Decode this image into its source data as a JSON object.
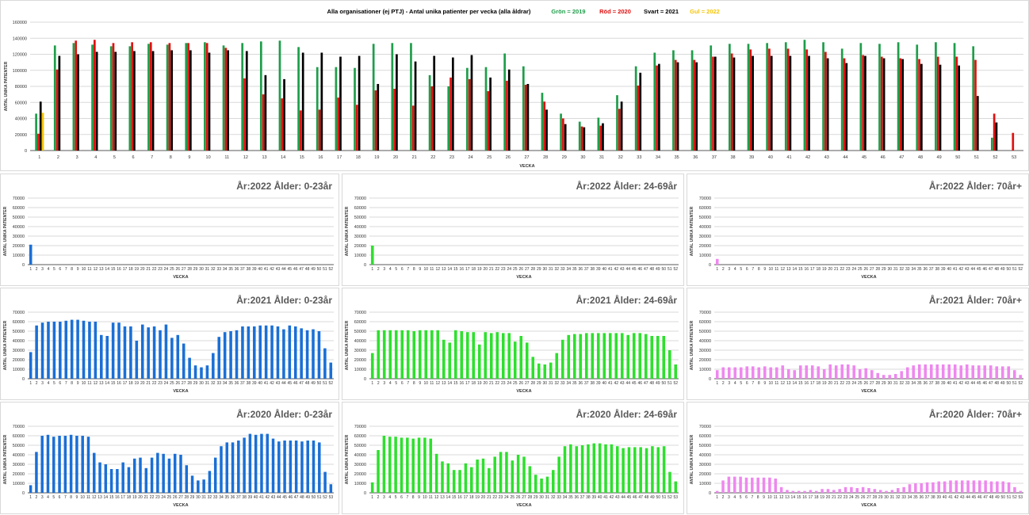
{
  "colors": {
    "green": "#1e9e4a",
    "red": "#e01010",
    "black": "#000000",
    "yellow": "#f5c400",
    "blue": "#1a6fd6",
    "lime": "#2ee02e",
    "pink": "#ee88ee",
    "grid": "#d9d9d9",
    "axis": "#595959"
  },
  "chart_data": [
    {
      "type": "bar",
      "title": "Alla organisationer (ej PTJ)   -   Antal unika patienter per vecka (alla åldrar)",
      "legend": [
        {
          "label": "Grön = 2019",
          "color": "#1e9e4a"
        },
        {
          "label": "Röd = 2020",
          "color": "#e01010"
        },
        {
          "label": "Svart = 2021",
          "color": "#000000"
        },
        {
          "label": "Gul = 2022",
          "color": "#f5c400"
        }
      ],
      "xlabel": "VECKA",
      "ylabel": "ANTAL UNIKA PATIENTER",
      "ylim": [
        0,
        160000
      ],
      "yticks": [
        0,
        20000,
        40000,
        60000,
        80000,
        100000,
        120000,
        140000,
        160000
      ],
      "grid": true,
      "categories": [
        "1",
        "2",
        "3",
        "4",
        "5",
        "6",
        "7",
        "8",
        "9",
        "10",
        "11",
        "12",
        "13",
        "14",
        "15",
        "16",
        "17",
        "18",
        "19",
        "20",
        "21",
        "22",
        "23",
        "24",
        "25",
        "26",
        "27",
        "28",
        "29",
        "30",
        "31",
        "32",
        "33",
        "34",
        "35",
        "36",
        "37",
        "38",
        "39",
        "40",
        "41",
        "42",
        "43",
        "44",
        "45",
        "46",
        "47",
        "48",
        "49",
        "50",
        "51",
        "52",
        "53"
      ],
      "series": [
        {
          "name": "2019",
          "color": "#1e9e4a",
          "values": [
            46000,
            131000,
            134000,
            132000,
            130000,
            130000,
            133000,
            132000,
            134000,
            135000,
            131000,
            134000,
            136000,
            137000,
            129000,
            104000,
            104000,
            103000,
            133000,
            134000,
            134000,
            94000,
            80000,
            103000,
            104000,
            121000,
            105000,
            72000,
            46000,
            36000,
            41000,
            69000,
            105000,
            122000,
            125000,
            125000,
            131000,
            133000,
            133000,
            134000,
            135000,
            138000,
            135000,
            127000,
            134000,
            133000,
            135000,
            132000,
            135000,
            134000,
            130000,
            16000,
            0
          ]
        },
        {
          "name": "2020",
          "color": "#e01010",
          "values": [
            21000,
            101000,
            137000,
            138000,
            134000,
            135000,
            135000,
            134000,
            134000,
            134000,
            128000,
            90000,
            70000,
            65000,
            50000,
            51000,
            66000,
            57000,
            75000,
            77000,
            56000,
            80000,
            91000,
            89000,
            74000,
            87000,
            82000,
            61000,
            40000,
            30000,
            31000,
            52000,
            81000,
            106000,
            113000,
            113000,
            117000,
            121000,
            126000,
            127000,
            127000,
            126000,
            123000,
            115000,
            119000,
            117000,
            115000,
            114000,
            117000,
            117000,
            113000,
            46000,
            22000
          ]
        },
        {
          "name": "2021",
          "color": "#000000",
          "values": [
            61000,
            118000,
            120000,
            123000,
            123000,
            124000,
            124000,
            125000,
            125000,
            122000,
            125000,
            124000,
            94000,
            89000,
            122000,
            122000,
            117000,
            118000,
            83000,
            120000,
            111000,
            118000,
            116000,
            119000,
            91000,
            101000,
            83000,
            51000,
            33000,
            29000,
            34000,
            61000,
            97000,
            108000,
            110000,
            110000,
            117000,
            116000,
            118000,
            118000,
            118000,
            118000,
            115000,
            109000,
            118000,
            115000,
            114000,
            108000,
            107000,
            106000,
            68000,
            35000,
            0
          ]
        },
        {
          "name": "2022",
          "color": "#f5c400",
          "values": [
            47000,
            0,
            0,
            0,
            0,
            0,
            0,
            0,
            0,
            0,
            0,
            0,
            0,
            0,
            0,
            0,
            0,
            0,
            0,
            0,
            0,
            0,
            0,
            0,
            0,
            0,
            0,
            0,
            0,
            0,
            0,
            0,
            0,
            0,
            0,
            0,
            0,
            0,
            0,
            0,
            0,
            0,
            0,
            0,
            0,
            0,
            0,
            0,
            0,
            0,
            0,
            0,
            0
          ]
        }
      ]
    },
    {
      "type": "bar",
      "title": "År:2022   Ålder: 0-23år",
      "color": "#1a6fd6",
      "xlabel": "VECKA",
      "ylabel": "ANTAL UNIKA PATIENTER",
      "ylim": [
        0,
        70000
      ],
      "yticks": [
        0,
        10000,
        20000,
        30000,
        40000,
        50000,
        60000,
        70000
      ],
      "weeks": 52,
      "values": [
        21000
      ]
    },
    {
      "type": "bar",
      "title": "År:2022   Ålder: 24-69år",
      "color": "#2ee02e",
      "xlabel": "VECKA",
      "ylabel": "ANTAL UNIKA PATIENTER",
      "ylim": [
        0,
        70000
      ],
      "yticks": [
        0,
        10000,
        20000,
        30000,
        40000,
        50000,
        60000,
        70000
      ],
      "weeks": 52,
      "values": [
        20000
      ]
    },
    {
      "type": "bar",
      "title": "År:2022   Ålder: 70år+",
      "color": "#ee88ee",
      "xlabel": "VECKA",
      "ylabel": "ANTAL UNIKA PATIENTER",
      "ylim": [
        0,
        70000
      ],
      "yticks": [
        0,
        10000,
        20000,
        30000,
        40000,
        50000,
        60000,
        70000
      ],
      "weeks": 52,
      "values": [
        6000
      ]
    },
    {
      "type": "bar",
      "title": "År:2021   Ålder: 0-23år",
      "color": "#1a6fd6",
      "xlabel": "VECKA",
      "ylabel": "ANTAL UNIKA PATIENTER",
      "ylim": [
        0,
        70000
      ],
      "yticks": [
        0,
        10000,
        20000,
        30000,
        40000,
        50000,
        60000,
        70000
      ],
      "weeks": 52,
      "values": [
        28000,
        56000,
        59000,
        60000,
        60000,
        60000,
        61000,
        62000,
        62000,
        61000,
        60000,
        60000,
        46000,
        45000,
        59000,
        59000,
        55000,
        55000,
        40000,
        57000,
        54000,
        55000,
        51000,
        57000,
        43000,
        46000,
        37000,
        22000,
        14000,
        12000,
        14000,
        27000,
        44000,
        49000,
        50000,
        51000,
        55000,
        55000,
        55000,
        56000,
        56000,
        56000,
        55000,
        52000,
        56000,
        55000,
        53000,
        51000,
        52000,
        50000,
        32000,
        17000
      ]
    },
    {
      "type": "bar",
      "title": "År:2021   Ålder: 24-69år",
      "color": "#2ee02e",
      "xlabel": "VECKA",
      "ylabel": "ANTAL UNIKA PATIENTER",
      "ylim": [
        0,
        70000
      ],
      "yticks": [
        0,
        10000,
        20000,
        30000,
        40000,
        50000,
        60000,
        70000
      ],
      "weeks": 52,
      "values": [
        27000,
        51000,
        51000,
        51000,
        51000,
        51000,
        51000,
        50000,
        51000,
        51000,
        51000,
        51000,
        41000,
        38000,
        51000,
        50000,
        49000,
        49000,
        36000,
        49000,
        48000,
        49000,
        48000,
        48000,
        39000,
        45000,
        38000,
        23000,
        16000,
        15000,
        17000,
        27000,
        41000,
        46000,
        47000,
        47000,
        48000,
        48000,
        48000,
        48000,
        48000,
        48000,
        48000,
        46000,
        48000,
        48000,
        47000,
        45000,
        45000,
        45000,
        30000,
        15000
      ]
    },
    {
      "type": "bar",
      "title": "År:2021   Ålder: 70år+",
      "color": "#ee88ee",
      "xlabel": "VECKA",
      "ylabel": "ANTAL UNIKA PATIENTER",
      "ylim": [
        0,
        70000
      ],
      "yticks": [
        0,
        10000,
        20000,
        30000,
        40000,
        50000,
        60000,
        70000
      ],
      "weeks": 52,
      "values": [
        9000,
        12000,
        12000,
        12000,
        12000,
        13000,
        13000,
        12000,
        13000,
        12000,
        12000,
        14000,
        10000,
        9000,
        14000,
        14000,
        14000,
        13000,
        10000,
        15000,
        14000,
        15000,
        15000,
        14000,
        10000,
        11000,
        9000,
        6000,
        4000,
        4000,
        5000,
        8000,
        12000,
        14000,
        15000,
        15000,
        15000,
        15000,
        15000,
        15000,
        15000,
        14000,
        15000,
        14000,
        14000,
        14000,
        14000,
        13000,
        13000,
        13000,
        9000,
        4000
      ]
    },
    {
      "type": "bar",
      "title": "År:2020   Ålder: 0-23år",
      "color": "#1a6fd6",
      "xlabel": "VECKA",
      "ylabel": "ANTAL UNIKA PATIENTER",
      "ylim": [
        0,
        70000
      ],
      "yticks": [
        0,
        10000,
        20000,
        30000,
        40000,
        50000,
        60000,
        70000
      ],
      "weeks": 53,
      "values": [
        8000,
        43000,
        60000,
        61000,
        59000,
        60000,
        60000,
        61000,
        60000,
        60000,
        59000,
        42000,
        32000,
        30000,
        25000,
        25000,
        32000,
        27000,
        36000,
        37000,
        26000,
        37000,
        42000,
        41000,
        36000,
        41000,
        40000,
        29000,
        18000,
        13000,
        14000,
        23000,
        37000,
        49000,
        53000,
        53000,
        55000,
        58000,
        62000,
        61000,
        62000,
        62000,
        57000,
        54000,
        55000,
        55000,
        55000,
        54000,
        55000,
        55000,
        53000,
        22000,
        9000
      ]
    },
    {
      "type": "bar",
      "title": "År:2020   Ålder: 24-69år",
      "color": "#2ee02e",
      "xlabel": "VECKA",
      "ylabel": "ANTAL UNIKA PATIENTER",
      "ylim": [
        0,
        70000
      ],
      "yticks": [
        0,
        10000,
        20000,
        30000,
        40000,
        50000,
        60000,
        70000
      ],
      "weeks": 53,
      "values": [
        11000,
        45000,
        60000,
        59000,
        59000,
        58000,
        58000,
        57000,
        58000,
        58000,
        57000,
        41000,
        33000,
        31000,
        24000,
        24000,
        31000,
        27000,
        35000,
        36000,
        26000,
        38000,
        43000,
        43000,
        34000,
        40000,
        38000,
        28000,
        19000,
        15000,
        17000,
        24000,
        38000,
        49000,
        51000,
        49000,
        50000,
        51000,
        52000,
        52000,
        51000,
        51000,
        49000,
        47000,
        48000,
        48000,
        48000,
        47000,
        49000,
        48000,
        49000,
        22000,
        12000
      ]
    },
    {
      "type": "bar",
      "title": "År:2020   Ålder: 70år+",
      "color": "#ee88ee",
      "xlabel": "VECKA",
      "ylabel": "ANTAL UNIKA PATIENTER",
      "ylim": [
        0,
        70000
      ],
      "yticks": [
        0,
        10000,
        20000,
        30000,
        40000,
        50000,
        60000,
        70000
      ],
      "weeks": 53,
      "values": [
        2000,
        13000,
        17000,
        17000,
        17000,
        16000,
        16000,
        16000,
        16000,
        16000,
        15000,
        6000,
        3000,
        2000,
        2000,
        2000,
        3000,
        2000,
        4000,
        4000,
        3000,
        4000,
        6000,
        6000,
        5000,
        6000,
        5000,
        4000,
        3000,
        2000,
        3000,
        5000,
        6000,
        9000,
        10000,
        10000,
        11000,
        11000,
        12000,
        12000,
        13000,
        13000,
        13000,
        13000,
        13000,
        13000,
        13000,
        12000,
        12000,
        12000,
        11000,
        6000,
        2000
      ]
    }
  ]
}
